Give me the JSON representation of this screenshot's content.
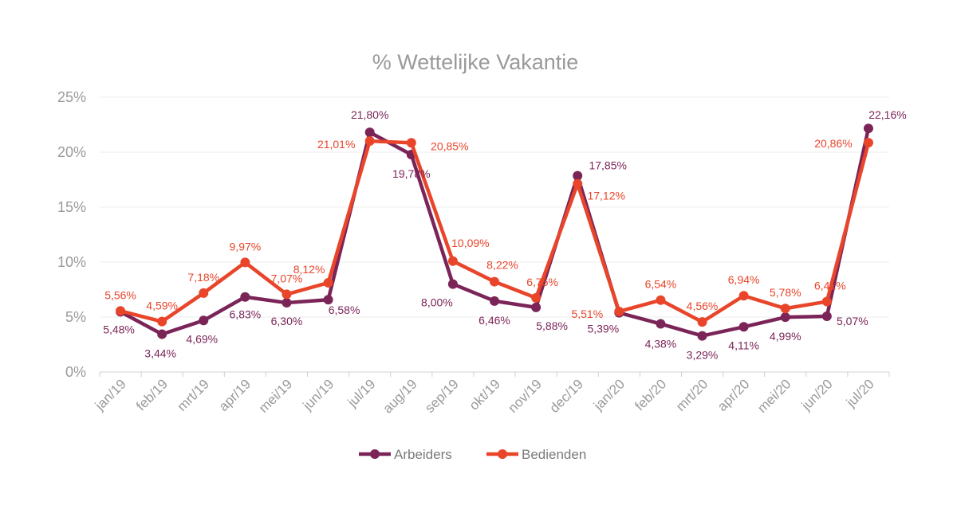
{
  "chart_data": {
    "type": "line",
    "title": "% Wettelijke Vakantie",
    "xlabel": "",
    "ylabel": "",
    "ylim": [
      0,
      25
    ],
    "yticks": [
      "0%",
      "5%",
      "10%",
      "15%",
      "20%",
      "25%"
    ],
    "categories": [
      "jan/19",
      "feb/19",
      "mrt/19",
      "apr/19",
      "mei/19",
      "jun/19",
      "jul/19",
      "aug/19",
      "sep/19",
      "okt/19",
      "nov/19",
      "dec/19",
      "jan/20",
      "feb/20",
      "mrt/20",
      "apr/20",
      "mei/20",
      "jun/20",
      "jul/20"
    ],
    "grid": "horizontal",
    "legend_position": "bottom",
    "series": [
      {
        "name": "Arbeiders",
        "color": "#7b2458",
        "values": [
          5.48,
          3.44,
          4.69,
          6.83,
          6.3,
          6.58,
          21.8,
          19.78,
          8.0,
          6.46,
          5.88,
          17.85,
          5.39,
          4.38,
          3.29,
          4.11,
          4.99,
          5.07,
          22.16
        ],
        "labels": [
          "5,48%",
          "3,44%",
          "4,69%",
          "6,83%",
          "6,30%",
          "6,58%",
          "21,80%",
          "19,78%",
          "8,00%",
          "6,46%",
          "5,88%",
          "17,85%",
          "5,39%",
          "4,38%",
          "3,29%",
          "4,11%",
          "4,99%",
          "5,07%",
          "22,16%"
        ]
      },
      {
        "name": "Bedienden",
        "color": "#e8452a",
        "values": [
          5.56,
          4.59,
          7.18,
          9.97,
          7.07,
          8.12,
          21.01,
          20.85,
          10.09,
          8.22,
          6.75,
          17.12,
          5.51,
          6.54,
          4.56,
          6.94,
          5.78,
          6.41,
          20.86
        ],
        "labels": [
          "5,56%",
          "4,59%",
          "7,18%",
          "9,97%",
          "7,07%",
          "8,12%",
          "21,01%",
          "20,85%",
          "10,09%",
          "8,22%",
          "6,75%",
          "17,12%",
          "5,51%",
          "6,54%",
          "4,56%",
          "6,94%",
          "5,78%",
          "6,41%",
          "20,86%"
        ]
      }
    ]
  }
}
